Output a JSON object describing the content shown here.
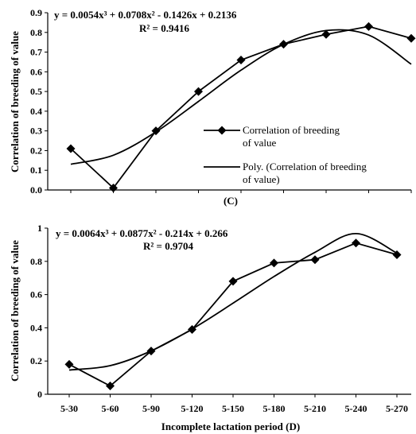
{
  "chart_data": [
    {
      "type": "line",
      "panel_label": "(C)",
      "ylabel": "Correlation of breeding of value",
      "xlabel": "",
      "ylim": [
        0,
        0.9
      ],
      "yticks": [
        "0.0",
        "0.1",
        "0.2",
        "0.3",
        "0.4",
        "0.5",
        "0.6",
        "0.7",
        "0.8",
        "0.9"
      ],
      "tick_values": [
        0,
        0.1,
        0.2,
        0.3,
        0.4,
        0.5,
        0.6,
        0.7,
        0.8,
        0.9
      ],
      "categories": [
        "5-30",
        "5-60",
        "5-90",
        "5-120",
        "5-150",
        "5-180",
        "5-210",
        "5-240",
        "5-270"
      ],
      "equation": "y = 0.0054x³ + 0.0708x² - 0.1426x + 0.2136",
      "r2": "R² = 0.9416",
      "series": [
        {
          "name": "Correlation of breeding of value",
          "values": [
            0.21,
            0.01,
            0.3,
            0.5,
            0.66,
            0.74,
            0.79,
            0.83,
            0.77
          ]
        },
        {
          "name": "Poly. (Correlation of breeding of value)",
          "values": [
            0.1308,
            0.1764,
            0.2946,
            0.4494,
            0.6084,
            0.7392,
            0.8094,
            0.7866,
            0.6384
          ]
        }
      ],
      "legend": {
        "line1": "Correlation of breeding",
        "line1b": "of value",
        "line2": "Poly. (Correlation of breeding",
        "line2b": "of value)"
      }
    },
    {
      "type": "line",
      "ylabel": "Correlation of breeding of value",
      "xlabel": "Incomplete lactation period (D)",
      "ylim": [
        0,
        1
      ],
      "yticks": [
        "0",
        "0.2",
        "0.4",
        "0.6",
        "0.8",
        "1"
      ],
      "tick_values": [
        0,
        0.2,
        0.4,
        0.6,
        0.8,
        1
      ],
      "categories": [
        "5-30",
        "5-60",
        "5-90",
        "5-120",
        "5-150",
        "5-180",
        "5-210",
        "5-240",
        "5-270"
      ],
      "equation": "y = 0.0064x³ + 0.0877x² - 0.214x + 0.266",
      "r2": "R² = 0.9704",
      "series": [
        {
          "name": "Correlation of breeding of value",
          "values": [
            0.18,
            0.05,
            0.26,
            0.39,
            0.68,
            0.79,
            0.81,
            0.91,
            0.84
          ]
        },
        {
          "name": "Poly. (Correlation of breeding of value)",
          "values": [
            0.1461,
            0.1722,
            0.2607,
            0.3924,
            0.5481,
            0.7086,
            0.8547,
            0.9672,
            0.85
          ]
        }
      ]
    }
  ]
}
